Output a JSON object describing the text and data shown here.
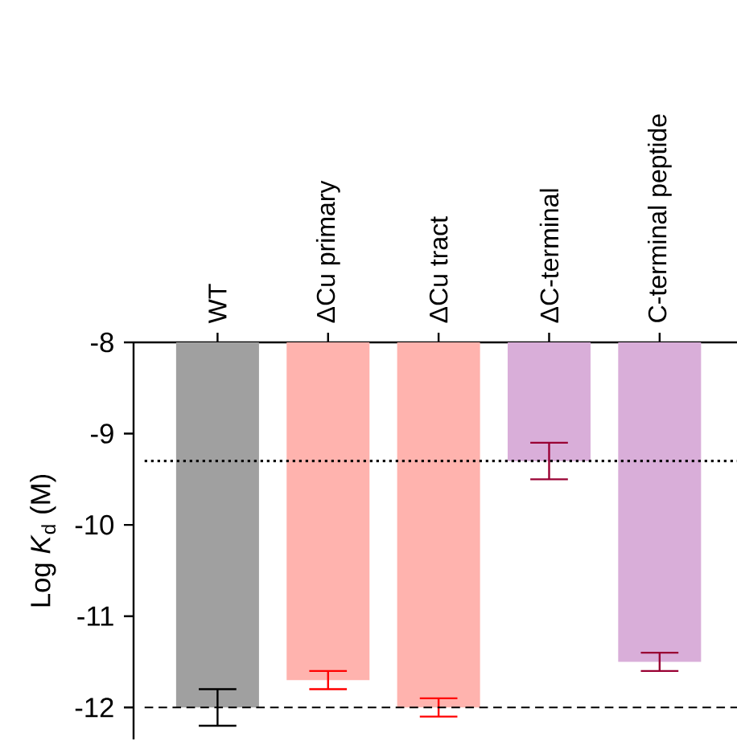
{
  "chart_data": {
    "type": "bar",
    "ylabel": "Log *K*$_{d}$ (M)",
    "categories": [
      "WT",
      "ΔCu primary",
      "ΔCu tract",
      "ΔC-terminal",
      "C-terminal peptide"
    ],
    "values": [
      -12,
      -11.7,
      -12,
      -9.3,
      -11.5
    ],
    "colors": [
      "#a0a0a0",
      "#ffb3ae",
      "#ffb3ae",
      "#d9aed9",
      "#d9aed9"
    ],
    "errors": [
      0.2,
      0.1,
      0.1,
      0.2,
      0.1
    ],
    "ylim": [
      -12.35,
      -8
    ],
    "yticks": [
      -12,
      -11,
      -10,
      -9,
      -8
    ],
    "ref_lines": [
      {
        "axis": "y",
        "value": -9.3,
        "line_style": "dotted"
      },
      {
        "axis": "y",
        "value": -12,
        "line_style": "dashed"
      }
    ],
    "grid": false
  }
}
